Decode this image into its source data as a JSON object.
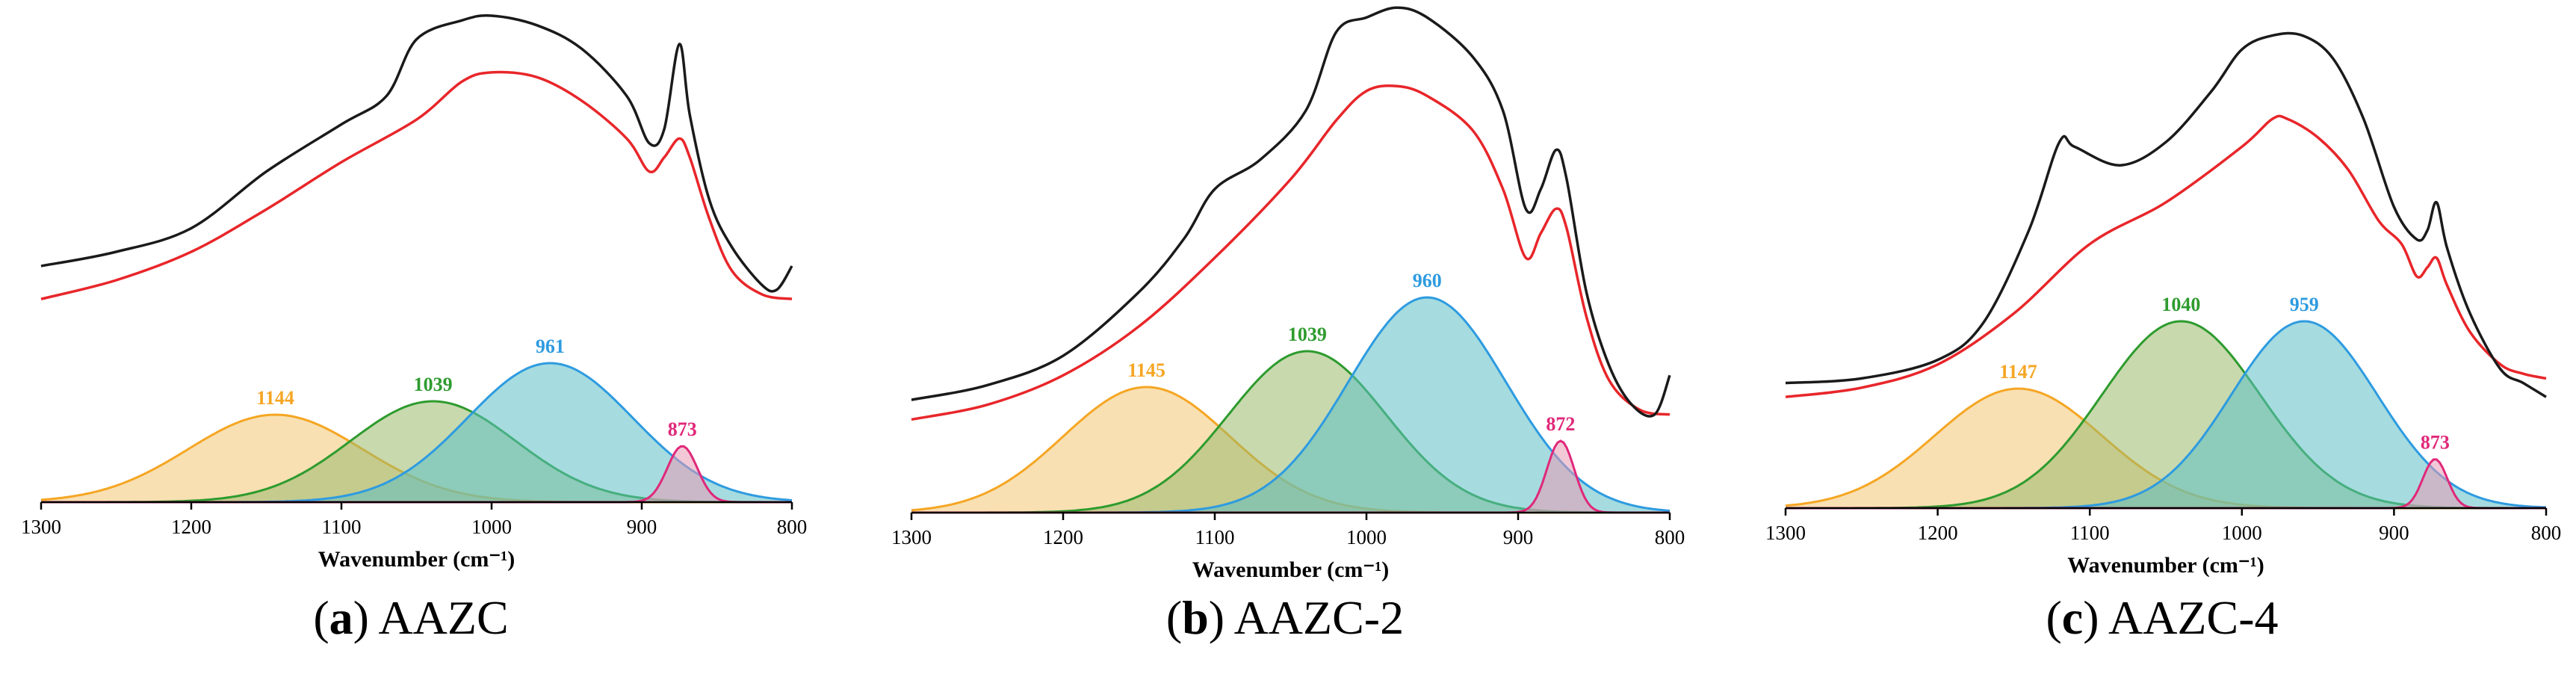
{
  "chart_data": [
    {
      "type": "area",
      "caption_letter": "a",
      "caption_text": "AAZC",
      "xlabel": "Wavenumber (cm⁻¹)",
      "x_ticks": [
        1300,
        1200,
        1100,
        1000,
        900,
        800
      ],
      "xlim": [
        1300,
        800
      ],
      "peaks": [
        {
          "center": 1144,
          "label": "1144",
          "height": 0.39,
          "width": 58,
          "color": "#F5A623",
          "fill": "#F2C775"
        },
        {
          "center": 1039,
          "label": "1039",
          "height": 0.45,
          "width": 55,
          "color": "#2E9B2E",
          "fill": "#9BB96B"
        },
        {
          "center": 961,
          "label": "961",
          "height": 0.62,
          "width": 55,
          "color": "#2E9BE0",
          "fill": "#5DBFC4"
        },
        {
          "center": 873,
          "label": "873",
          "height": 0.25,
          "width": 10,
          "color": "#E0287A",
          "fill": "#E89AB4"
        }
      ],
      "black_curve": [
        [
          1300,
          0.5
        ],
        [
          1250,
          0.53
        ],
        [
          1200,
          0.58
        ],
        [
          1150,
          0.7
        ],
        [
          1100,
          0.8
        ],
        [
          1070,
          0.86
        ],
        [
          1050,
          0.98
        ],
        [
          1020,
          1.02
        ],
        [
          1000,
          1.03
        ],
        [
          970,
          1.01
        ],
        [
          940,
          0.96
        ],
        [
          910,
          0.86
        ],
        [
          895,
          0.76
        ],
        [
          885,
          0.79
        ],
        [
          875,
          0.97
        ],
        [
          868,
          0.82
        ],
        [
          855,
          0.64
        ],
        [
          840,
          0.54
        ],
        [
          820,
          0.46
        ],
        [
          810,
          0.45
        ],
        [
          800,
          0.5
        ]
      ],
      "red_curve": [
        [
          1300,
          0.43
        ],
        [
          1250,
          0.47
        ],
        [
          1200,
          0.53
        ],
        [
          1150,
          0.62
        ],
        [
          1100,
          0.72
        ],
        [
          1050,
          0.81
        ],
        [
          1020,
          0.89
        ],
        [
          1000,
          0.91
        ],
        [
          970,
          0.9
        ],
        [
          940,
          0.85
        ],
        [
          910,
          0.77
        ],
        [
          895,
          0.7
        ],
        [
          885,
          0.73
        ],
        [
          875,
          0.77
        ],
        [
          868,
          0.73
        ],
        [
          855,
          0.6
        ],
        [
          840,
          0.49
        ],
        [
          820,
          0.44
        ],
        [
          800,
          0.43
        ]
      ]
    },
    {
      "type": "area",
      "caption_letter": "b",
      "caption_text": "AAZC-2",
      "xlabel": "Wavenumber (cm⁻¹)",
      "x_ticks": [
        1300,
        1200,
        1100,
        1000,
        900,
        800
      ],
      "xlim": [
        1300,
        800
      ],
      "peaks": [
        {
          "center": 1145,
          "label": "1145",
          "height": 0.42,
          "width": 55,
          "color": "#F5A623",
          "fill": "#F2C775"
        },
        {
          "center": 1039,
          "label": "1039",
          "height": 0.54,
          "width": 52,
          "color": "#2E9B2E",
          "fill": "#9BB96B"
        },
        {
          "center": 960,
          "label": "960",
          "height": 0.72,
          "width": 52,
          "color": "#2E9BE0",
          "fill": "#5DBFC4"
        },
        {
          "center": 872,
          "label": "872",
          "height": 0.24,
          "width": 9,
          "color": "#E0287A",
          "fill": "#E89AB4"
        }
      ],
      "black_curve": [
        [
          1300,
          0.23
        ],
        [
          1250,
          0.26
        ],
        [
          1200,
          0.32
        ],
        [
          1150,
          0.45
        ],
        [
          1120,
          0.56
        ],
        [
          1100,
          0.66
        ],
        [
          1070,
          0.72
        ],
        [
          1040,
          0.82
        ],
        [
          1020,
          0.98
        ],
        [
          1000,
          1.01
        ],
        [
          980,
          1.03
        ],
        [
          960,
          1.01
        ],
        [
          930,
          0.93
        ],
        [
          910,
          0.82
        ],
        [
          895,
          0.62
        ],
        [
          885,
          0.66
        ],
        [
          875,
          0.74
        ],
        [
          868,
          0.68
        ],
        [
          855,
          0.45
        ],
        [
          840,
          0.3
        ],
        [
          825,
          0.22
        ],
        [
          810,
          0.2
        ],
        [
          800,
          0.28
        ]
      ],
      "red_curve": [
        [
          1300,
          0.19
        ],
        [
          1250,
          0.22
        ],
        [
          1200,
          0.28
        ],
        [
          1150,
          0.38
        ],
        [
          1100,
          0.52
        ],
        [
          1050,
          0.68
        ],
        [
          1020,
          0.8
        ],
        [
          1000,
          0.86
        ],
        [
          980,
          0.87
        ],
        [
          960,
          0.85
        ],
        [
          930,
          0.78
        ],
        [
          910,
          0.66
        ],
        [
          895,
          0.52
        ],
        [
          885,
          0.57
        ],
        [
          875,
          0.62
        ],
        [
          868,
          0.58
        ],
        [
          855,
          0.4
        ],
        [
          840,
          0.27
        ],
        [
          820,
          0.21
        ],
        [
          800,
          0.2
        ]
      ]
    },
    {
      "type": "area",
      "caption_letter": "c",
      "caption_text": "AAZC-4",
      "xlabel": "Wavenumber (cm⁻¹)",
      "x_ticks": [
        1300,
        1200,
        1100,
        1000,
        900,
        800
      ],
      "xlim": [
        1300,
        800
      ],
      "peaks": [
        {
          "center": 1147,
          "label": "1147",
          "height": 0.39,
          "width": 55,
          "color": "#F5A623",
          "fill": "#F2C775"
        },
        {
          "center": 1040,
          "label": "1040",
          "height": 0.61,
          "width": 52,
          "color": "#2E9B2E",
          "fill": "#9BB96B"
        },
        {
          "center": 959,
          "label": "959",
          "height": 0.61,
          "width": 48,
          "color": "#2E9BE0",
          "fill": "#5DBFC4"
        },
        {
          "center": 873,
          "label": "873",
          "height": 0.16,
          "width": 8,
          "color": "#E0287A",
          "fill": "#E89AB4"
        }
      ],
      "black_curve": [
        [
          1300,
          0.27
        ],
        [
          1250,
          0.28
        ],
        [
          1200,
          0.32
        ],
        [
          1170,
          0.4
        ],
        [
          1140,
          0.6
        ],
        [
          1120,
          0.79
        ],
        [
          1110,
          0.78
        ],
        [
          1080,
          0.74
        ],
        [
          1050,
          0.79
        ],
        [
          1020,
          0.9
        ],
        [
          1000,
          0.99
        ],
        [
          980,
          1.02
        ],
        [
          960,
          1.02
        ],
        [
          940,
          0.97
        ],
        [
          920,
          0.84
        ],
        [
          900,
          0.65
        ],
        [
          885,
          0.58
        ],
        [
          878,
          0.6
        ],
        [
          872,
          0.66
        ],
        [
          865,
          0.56
        ],
        [
          850,
          0.42
        ],
        [
          830,
          0.3
        ],
        [
          815,
          0.27
        ],
        [
          800,
          0.24
        ]
      ],
      "red_curve": [
        [
          1300,
          0.24
        ],
        [
          1250,
          0.26
        ],
        [
          1200,
          0.31
        ],
        [
          1150,
          0.42
        ],
        [
          1100,
          0.57
        ],
        [
          1050,
          0.66
        ],
        [
          1000,
          0.78
        ],
        [
          980,
          0.84
        ],
        [
          970,
          0.84
        ],
        [
          950,
          0.8
        ],
        [
          930,
          0.73
        ],
        [
          910,
          0.62
        ],
        [
          895,
          0.57
        ],
        [
          885,
          0.5
        ],
        [
          878,
          0.52
        ],
        [
          872,
          0.54
        ],
        [
          865,
          0.48
        ],
        [
          850,
          0.38
        ],
        [
          830,
          0.31
        ],
        [
          815,
          0.29
        ],
        [
          800,
          0.28
        ]
      ]
    }
  ]
}
